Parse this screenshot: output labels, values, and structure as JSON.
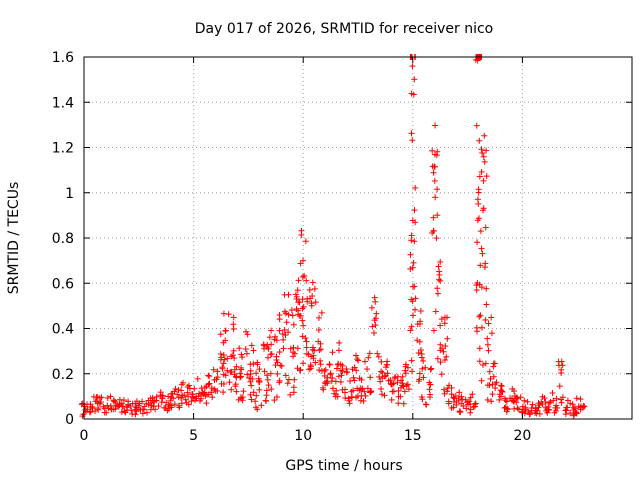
{
  "chart_data": {
    "type": "scatter",
    "title": "Day 017 of 2026, SRMTID for receiver nico",
    "xlabel": "GPS time / hours",
    "ylabel": "SRMTID / TECUs",
    "xlim": [
      0,
      25
    ],
    "ylim": [
      0,
      1.6
    ],
    "xticks": [
      0,
      5,
      10,
      15,
      20
    ],
    "xtick_labels": [
      "0",
      "5",
      "10",
      "15",
      "20"
    ],
    "yticks": [
      0,
      0.2,
      0.4,
      0.6,
      0.8,
      1.0,
      1.2,
      1.4,
      1.6
    ],
    "ytick_labels": [
      "0",
      "0.2",
      "0.4",
      "0.6",
      "0.8",
      "1",
      "1.2",
      "1.4",
      "1.6"
    ],
    "grid": true,
    "marker": "plus",
    "color": "#ff0000",
    "series": [
      {
        "name": "SRMTID",
        "x": [
          0.0,
          0.25,
          0.5,
          0.75,
          1.0,
          1.25,
          1.5,
          1.75,
          2.0,
          2.25,
          2.5,
          2.75,
          3.0,
          3.25,
          3.5,
          3.75,
          4.0,
          4.25,
          4.5,
          4.75,
          5.0,
          5.25,
          5.5,
          5.75,
          6.0,
          6.25,
          6.5,
          6.75,
          7.0,
          7.25,
          7.5,
          7.75,
          8.0,
          8.25,
          8.5,
          8.75,
          9.0,
          9.25,
          9.5,
          9.75,
          10.0,
          10.25,
          10.5,
          10.75,
          11.0,
          11.25,
          11.5,
          11.75,
          12.0,
          12.25,
          12.5,
          12.75,
          13.0,
          13.25,
          13.5,
          13.75,
          14.0,
          14.25,
          14.5,
          14.75,
          15.0,
          15.25,
          15.5,
          15.75,
          16.0,
          16.25,
          16.5,
          16.75,
          17.0,
          17.25,
          17.5,
          17.75,
          18.0,
          18.25,
          18.5,
          18.75,
          19.0,
          19.25,
          19.5,
          19.75,
          20.0,
          20.25,
          20.5,
          20.75,
          21.0,
          21.25,
          21.5,
          21.75,
          22.0,
          22.25,
          22.5,
          22.75
        ],
        "y": [
          0.04,
          0.05,
          0.06,
          0.07,
          0.06,
          0.07,
          0.05,
          0.06,
          0.05,
          0.05,
          0.06,
          0.05,
          0.07,
          0.06,
          0.08,
          0.07,
          0.09,
          0.1,
          0.11,
          0.1,
          0.12,
          0.13,
          0.12,
          0.14,
          0.16,
          0.25,
          0.3,
          0.25,
          0.22,
          0.2,
          0.24,
          0.18,
          0.15,
          0.22,
          0.25,
          0.23,
          0.3,
          0.35,
          0.3,
          0.38,
          0.5,
          0.4,
          0.42,
          0.35,
          0.22,
          0.2,
          0.18,
          0.22,
          0.15,
          0.18,
          0.2,
          0.17,
          0.2,
          0.45,
          0.2,
          0.18,
          0.14,
          0.13,
          0.14,
          0.18,
          1.1,
          0.35,
          0.18,
          0.15,
          0.82,
          0.4,
          0.25,
          0.1,
          0.08,
          0.07,
          0.06,
          0.07,
          1.55,
          0.7,
          0.25,
          0.15,
          0.1,
          0.08,
          0.09,
          0.07,
          0.06,
          0.05,
          0.06,
          0.05,
          0.06,
          0.05,
          0.07,
          0.18,
          0.06,
          0.05,
          0.06,
          0.05
        ],
        "y_spread": [
          0.03,
          0.03,
          0.04,
          0.04,
          0.04,
          0.03,
          0.03,
          0.03,
          0.03,
          0.03,
          0.03,
          0.03,
          0.04,
          0.04,
          0.04,
          0.04,
          0.05,
          0.05,
          0.05,
          0.05,
          0.05,
          0.05,
          0.05,
          0.06,
          0.07,
          0.15,
          0.18,
          0.2,
          0.15,
          0.12,
          0.15,
          0.15,
          0.12,
          0.15,
          0.15,
          0.15,
          0.18,
          0.2,
          0.2,
          0.25,
          0.35,
          0.25,
          0.2,
          0.15,
          0.12,
          0.1,
          0.1,
          0.12,
          0.1,
          0.1,
          0.12,
          0.1,
          0.1,
          0.1,
          0.12,
          0.08,
          0.08,
          0.07,
          0.08,
          0.1,
          0.9,
          0.2,
          0.12,
          0.08,
          0.5,
          0.3,
          0.2,
          0.06,
          0.05,
          0.04,
          0.04,
          0.04,
          1.3,
          0.6,
          0.2,
          0.1,
          0.06,
          0.05,
          0.05,
          0.04,
          0.04,
          0.03,
          0.04,
          0.03,
          0.04,
          0.03,
          0.05,
          0.12,
          0.04,
          0.04,
          0.04,
          0.04
        ]
      }
    ]
  }
}
